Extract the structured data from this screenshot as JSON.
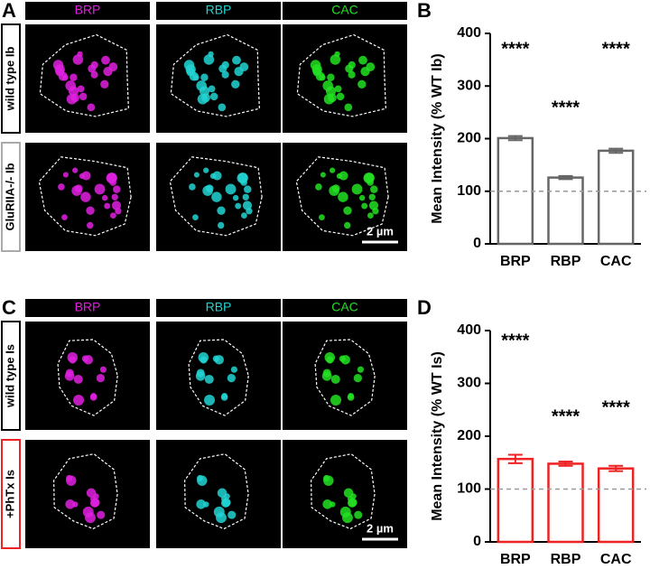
{
  "image_panels": [
    {
      "label": "A",
      "channels": [
        "BRP",
        "RBP",
        "CAC"
      ],
      "channel_colors": [
        "#e020e0",
        "#22d4d4",
        "#22e022"
      ],
      "rows": [
        "wild type Ib",
        "GluRIIA-/- Ib"
      ],
      "row_colors": [
        "#000000",
        "#aaaaaa"
      ],
      "scale_bar": "2 µm"
    },
    {
      "label": "C",
      "channels": [
        "BRP",
        "RBP",
        "CAC"
      ],
      "channel_colors": [
        "#e020e0",
        "#22d4d4",
        "#22e022"
      ],
      "rows": [
        "wild type Is",
        "+PhTx Is"
      ],
      "row_colors": [
        "#000000",
        "#ee2222"
      ],
      "scale_bar": "2 µm"
    }
  ],
  "chart_data": [
    {
      "type": "bar",
      "panel_label": "B",
      "y_label": "Mean Intensity (% WT Ib)",
      "categories": [
        "BRP",
        "RBP",
        "CAC"
      ],
      "values": [
        201,
        126,
        177
      ],
      "errors": [
        4,
        3,
        4
      ],
      "annotations": [
        "****",
        "****",
        "****"
      ],
      "color": "#666666",
      "reference_line": 100,
      "ylim": [
        0,
        400
      ],
      "yticks": [
        0,
        100,
        200,
        300,
        400
      ]
    },
    {
      "type": "bar",
      "panel_label": "D",
      "y_label": "Mean Intensity (% WT Is)",
      "categories": [
        "BRP",
        "RBP",
        "CAC"
      ],
      "values": [
        157,
        148,
        139
      ],
      "errors": [
        8,
        4,
        5
      ],
      "annotations": [
        "****",
        "****",
        "****"
      ],
      "color": "#ee2222",
      "reference_line": 100,
      "ylim": [
        0,
        400
      ],
      "yticks": [
        0,
        100,
        200,
        300,
        400
      ]
    }
  ]
}
